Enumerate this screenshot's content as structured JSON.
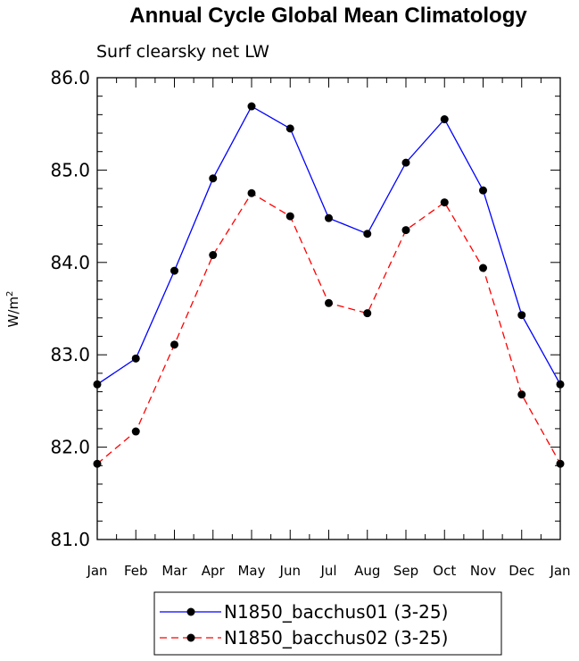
{
  "chart_data": {
    "type": "line",
    "title": "Annual Cycle Global Mean Climatology",
    "subtitle": "Surf clearsky net LW",
    "ylabel": "W/m",
    "ylabel_sup": "2",
    "xlabel": "",
    "ylim": [
      81.0,
      86.0
    ],
    "yticks": [
      "81.0",
      "82.0",
      "83.0",
      "84.0",
      "85.0",
      "86.0"
    ],
    "categories": [
      "Jan",
      "Feb",
      "Mar",
      "Apr",
      "May",
      "Jun",
      "Jul",
      "Aug",
      "Sep",
      "Oct",
      "Nov",
      "Dec",
      "Jan"
    ],
    "grid": false,
    "legend_position": "bottom",
    "series": [
      {
        "name": "N1850_bacchus01 (3-25)",
        "color": "#0000ff",
        "dash": "solid",
        "values": [
          82.68,
          82.96,
          83.91,
          84.91,
          85.69,
          85.45,
          84.48,
          84.31,
          85.08,
          85.55,
          84.78,
          83.43,
          82.68
        ]
      },
      {
        "name": "N1850_bacchus02 (3-25)",
        "color": "#ff0000",
        "dash": "dashed",
        "values": [
          81.82,
          82.17,
          83.11,
          84.08,
          84.75,
          84.5,
          83.56,
          83.45,
          84.35,
          84.65,
          83.94,
          82.57,
          81.82
        ]
      }
    ]
  }
}
